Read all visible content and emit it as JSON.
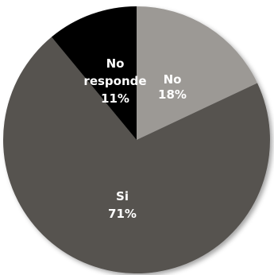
{
  "chart_data": {
    "type": "pie",
    "start_angle_deg": 0,
    "direction": "clockwise",
    "slices": [
      {
        "label": "No",
        "value": 18,
        "value_label": "18%",
        "color": "#9c9995"
      },
      {
        "label": "Si",
        "value": 71,
        "value_label": "71%",
        "color": "#565350"
      },
      {
        "label": "No responde",
        "value": 11,
        "value_label": "11%",
        "color": "#000000"
      }
    ]
  }
}
